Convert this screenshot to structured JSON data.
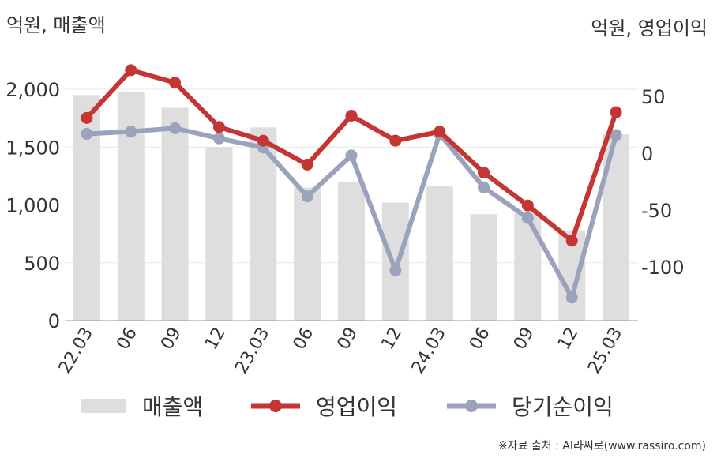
{
  "chart_data": {
    "type": "bar+line",
    "categories": [
      "22.03",
      "06",
      "09",
      "12",
      "23.03",
      "06",
      "09",
      "12",
      "24.03",
      "06",
      "09",
      "12",
      "25.03"
    ],
    "series": [
      {
        "name": "매출액",
        "type": "bar",
        "axis": "left",
        "color": "#dedede",
        "values": [
          1950,
          1980,
          1840,
          1500,
          1670,
          1150,
          1200,
          1020,
          1160,
          920,
          930,
          780,
          1610
        ]
      },
      {
        "name": "영업이익",
        "type": "line",
        "axis": "right",
        "color": "#c53533",
        "values": [
          31,
          73,
          62,
          23,
          11,
          -10,
          33,
          11,
          19,
          -17,
          -46,
          -77,
          36
        ]
      },
      {
        "name": "당기순이익",
        "type": "line",
        "axis": "right",
        "color": "#9aa3bb",
        "values": [
          17,
          19,
          22,
          13,
          5,
          -38,
          -2,
          -103,
          17,
          -30,
          -57,
          -127,
          16
        ]
      }
    ],
    "left_axis": {
      "label": "억원, 매출액",
      "ylim": [
        0,
        2000
      ],
      "ticks": [
        0,
        500,
        1000,
        1500,
        2000
      ],
      "tick_labels": [
        "0",
        "500",
        "1,000",
        "1,500",
        "2,000"
      ]
    },
    "right_axis": {
      "label": "억원, 영업이익",
      "ylim": [
        -145,
        70
      ],
      "ticks": [
        -100,
        -50,
        0,
        50
      ],
      "tick_labels": [
        "-100",
        "-50",
        "0",
        "50"
      ]
    },
    "grid": true,
    "legend": "bottom"
  },
  "source": "※자료 출처 : AI라씨로(www.rassiro.com)"
}
